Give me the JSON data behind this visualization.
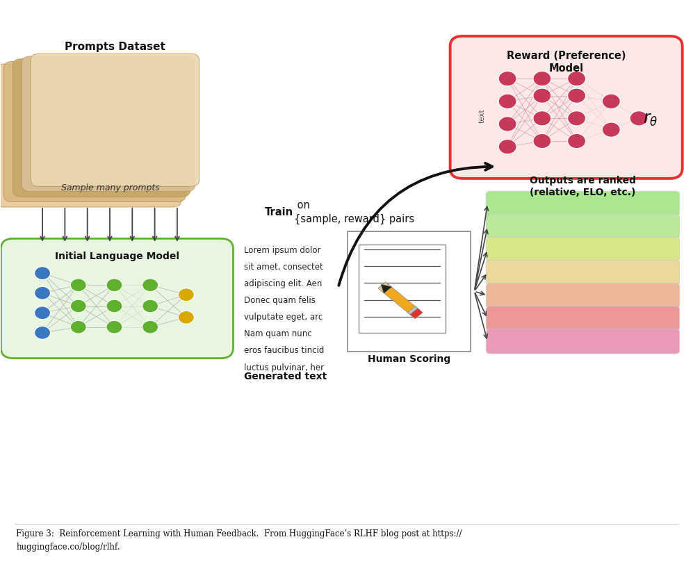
{
  "bg_color": "#ffffff",
  "fig_width": 9.97,
  "fig_height": 8.19,
  "prompts_dataset_label": "Prompts Dataset",
  "sample_prompts_label": "Sample many prompts",
  "initial_lm_label": "Initial Language Model",
  "reward_model_label": "Reward (Preference)\nModel",
  "train_bold": "Train",
  "train_rest": " on\n{sample, reward} pairs",
  "human_scoring_label": "Human Scoring",
  "generated_text_label": "Generated text",
  "outputs_ranked_label": "Outputs are ranked\n(relative, ELO, etc.)",
  "caption_line1": "Figure 3:  Reinforcement Learning with Human Feedback.  From HuggingFace’s RLHF blog post at https://",
  "caption_line2": "huggingface.co/blog/rlhf.",
  "ranked_colors": [
    "#aae890",
    "#b8e898",
    "#d8e888",
    "#ecd898",
    "#ecb898",
    "#ec9898",
    "#ec98b8"
  ],
  "stack_colors_back_to_front": [
    "#e8c898",
    "#d8b880",
    "#c8a868",
    "#d8c098",
    "#ecd8b0"
  ],
  "lm_box_color": "#e8f5e0",
  "lm_box_border": "#60b030",
  "reward_box_color": "#fde8e8",
  "reward_box_border": "#e83030",
  "neuron_green": "#60b030",
  "neuron_blue": "#3878c0",
  "neuron_yellow": "#d8a800",
  "neuron_red": "#c83858",
  "neuron_red_conn": "#d8a0a8",
  "neuron_green_conn": "#b0b0b0",
  "lorem_lines": [
    "Lorem ipsum dolor",
    "sit amet, consectet",
    "adipiscing elit. Aen",
    "Donec quam felis",
    "vulputate eget, arc",
    "Nam quam nunc",
    "eros faucibus tincid",
    "luctus pulvinar, her"
  ]
}
